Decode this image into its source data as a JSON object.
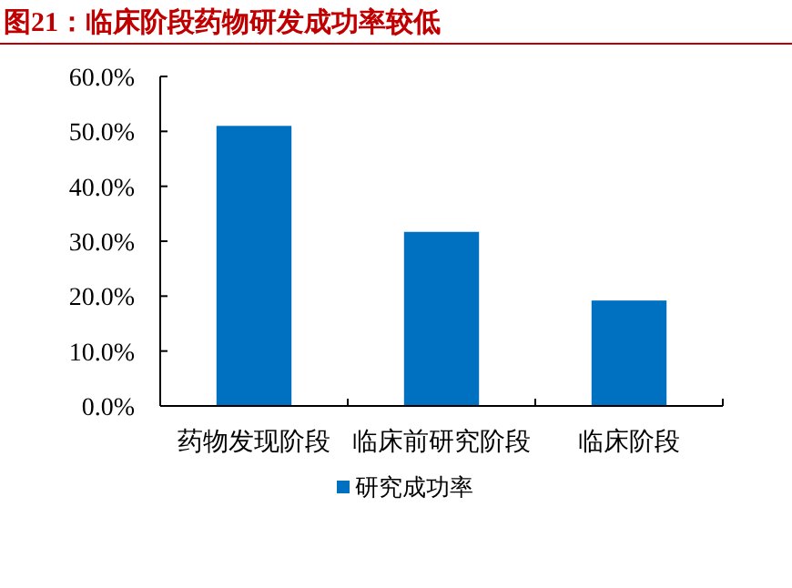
{
  "chart_data": {
    "type": "bar",
    "title": "图21：临床阶段药物研发成功率较低",
    "categories": [
      "药物发现阶段",
      "临床前研究阶段",
      "临床阶段"
    ],
    "series": [
      {
        "name": "研究成功率",
        "color": "#0070c0",
        "values": [
          51.0,
          31.7,
          19.2
        ]
      }
    ],
    "ylim": [
      0,
      60
    ],
    "yticks": [
      {
        "value": 0,
        "label": "0.0%"
      },
      {
        "value": 10,
        "label": "10.0%"
      },
      {
        "value": 20,
        "label": "20.0%"
      },
      {
        "value": 30,
        "label": "30.0%"
      },
      {
        "value": 40,
        "label": "40.0%"
      },
      {
        "value": 50,
        "label": "50.0%"
      },
      {
        "value": 60,
        "label": "60.0%"
      }
    ],
    "grid": false,
    "legend": "bottom"
  }
}
